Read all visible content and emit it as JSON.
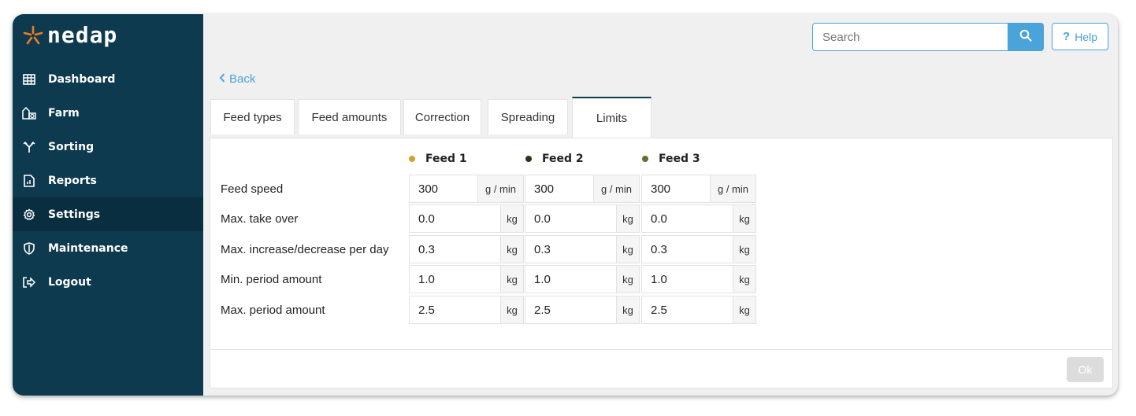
{
  "brand": {
    "name": "nedap",
    "star_color": "#f07d22"
  },
  "sidebar": {
    "items": [
      {
        "label": "Dashboard",
        "icon": "grid-icon"
      },
      {
        "label": "Farm",
        "icon": "farm-icon"
      },
      {
        "label": "Sorting",
        "icon": "sorting-icon"
      },
      {
        "label": "Reports",
        "icon": "report-icon"
      },
      {
        "label": "Settings",
        "icon": "gear-icon",
        "active": true
      },
      {
        "label": "Maintenance",
        "icon": "shield-icon"
      },
      {
        "label": "Logout",
        "icon": "logout-icon"
      }
    ]
  },
  "header": {
    "search_placeholder": "Search",
    "help_label": "Help",
    "help_symbol": "?"
  },
  "back_label": "Back",
  "tabs": [
    {
      "label": "Feed types"
    },
    {
      "label": "Feed amounts"
    },
    {
      "label": "Correction"
    },
    {
      "label": "Spreading"
    },
    {
      "label": "Limits",
      "active": true
    }
  ],
  "feeds": [
    {
      "name": "Feed 1",
      "color": "#d4a12a"
    },
    {
      "name": "Feed 2",
      "color": "#2d3319"
    },
    {
      "name": "Feed 3",
      "color": "#6b6a30"
    }
  ],
  "rows": [
    {
      "label": "Feed speed",
      "unit": "g / min",
      "values": [
        "300",
        "300",
        "300"
      ]
    },
    {
      "label": "Max. take over",
      "unit": "kg",
      "values": [
        "0.0",
        "0.0",
        "0.0"
      ]
    },
    {
      "label": "Max. increase/decrease per day",
      "unit": "kg",
      "values": [
        "0.3",
        "0.3",
        "0.3"
      ]
    },
    {
      "label": "Min. period amount",
      "unit": "kg",
      "values": [
        "1.0",
        "1.0",
        "1.0"
      ]
    },
    {
      "label": "Max. period amount",
      "unit": "kg",
      "values": [
        "2.5",
        "2.5",
        "2.5"
      ]
    }
  ],
  "footer": {
    "ok_label": "Ok"
  },
  "colors": {
    "sidebar": "#0d3a4f",
    "accent": "#4aa3d9"
  }
}
